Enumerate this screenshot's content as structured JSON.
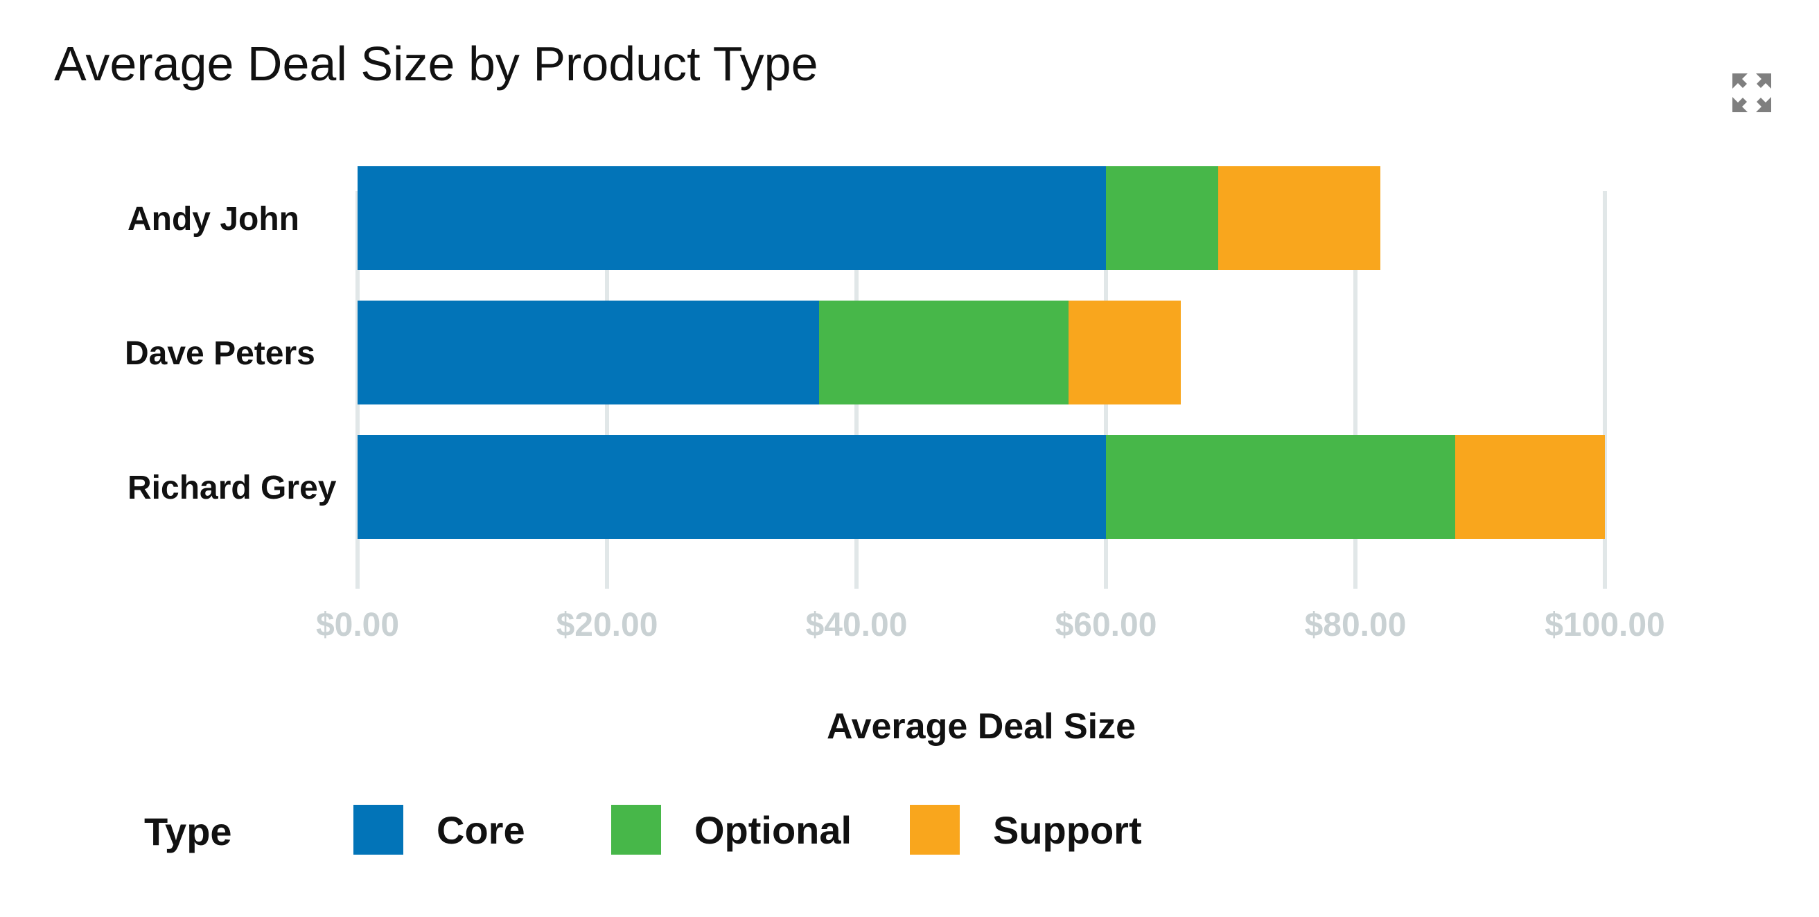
{
  "header": {
    "title": "Average Deal Size by Product Type",
    "expand_icon": "expand-arrows-icon"
  },
  "legend": {
    "title": "Type"
  },
  "colors": {
    "Core": "#0274b8",
    "Optional": "#47b749",
    "Support": "#f9a61d",
    "grid": "#e1e7e8",
    "tick_text": "#c9d1d3",
    "icon": "#7f7f7f"
  },
  "chart_data": {
    "type": "bar",
    "orientation": "horizontal",
    "stacked": true,
    "title": "Average Deal Size by Product Type",
    "categories": [
      "Andy John",
      "Dave Peters",
      "Richard Grey"
    ],
    "series": [
      {
        "name": "Core",
        "values": [
          60.0,
          37.0,
          60.0
        ]
      },
      {
        "name": "Optional",
        "values": [
          9.0,
          20.0,
          28.0
        ]
      },
      {
        "name": "Support",
        "values": [
          13.0,
          9.0,
          12.0
        ]
      }
    ],
    "xlabel": "Average Deal Size",
    "ylabel": "",
    "xlim": [
      0,
      100
    ],
    "ticks": [
      0,
      20,
      40,
      60,
      80,
      100
    ],
    "tick_labels": [
      "$0.00",
      "$20.00",
      "$40.00",
      "$60.00",
      "$80.00",
      "$100.00"
    ],
    "grid": true,
    "legend_title": "Type",
    "legend_position": "bottom-left"
  }
}
